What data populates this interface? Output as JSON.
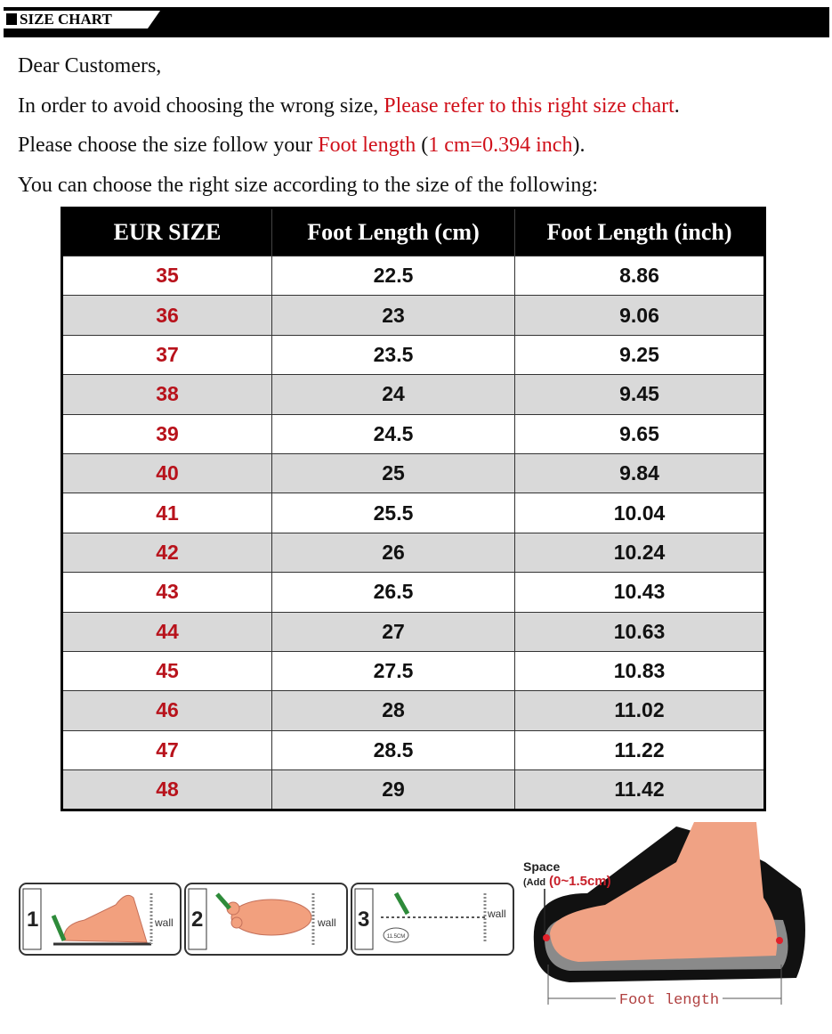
{
  "header": {
    "title": "SIZE CHART"
  },
  "intro": [
    [
      {
        "text": "Dear Customers,"
      }
    ],
    [
      {
        "text": "In order to avoid choosing the wrong size, "
      },
      {
        "text": "Please refer to this right size chart",
        "color": "#d0101a"
      },
      {
        "text": "."
      }
    ],
    [
      {
        "text": "Please choose the size follow your "
      },
      {
        "text": "Foot length",
        "color": "#d0101a"
      },
      {
        "text": " ("
      },
      {
        "text": "1 cm=0.394 inch",
        "color": "#d0101a"
      },
      {
        "text": ")."
      }
    ],
    [
      {
        "text": "You can choose the right size according to the size of the following:"
      }
    ]
  ],
  "table": {
    "columns": [
      "EUR SIZE",
      "Foot Length (cm)",
      "Foot Length (inch)"
    ],
    "rows": [
      [
        "35",
        "22.5",
        "8.86"
      ],
      [
        "36",
        "23",
        "9.06"
      ],
      [
        "37",
        "23.5",
        "9.25"
      ],
      [
        "38",
        "24",
        "9.45"
      ],
      [
        "39",
        "24.5",
        "9.65"
      ],
      [
        "40",
        "25",
        "9.84"
      ],
      [
        "41",
        "25.5",
        "10.04"
      ],
      [
        "42",
        "26",
        "10.24"
      ],
      [
        "43",
        "26.5",
        "10.43"
      ],
      [
        "44",
        "27",
        "10.63"
      ],
      [
        "45",
        "27.5",
        "10.83"
      ],
      [
        "46",
        "28",
        "11.02"
      ],
      [
        "47",
        "28.5",
        "11.22"
      ],
      [
        "48",
        "29",
        "11.42"
      ]
    ]
  },
  "illustration": {
    "steps": [
      {
        "number": "1",
        "label": "wall"
      },
      {
        "number": "2",
        "label": "wall"
      },
      {
        "number": "3",
        "label": "wall",
        "ruler": "11.5CM"
      }
    ],
    "diagram": {
      "space": "Space",
      "add": "(Add",
      "range": "(0~1.5cm)",
      "foot_length": "Foot length"
    }
  }
}
